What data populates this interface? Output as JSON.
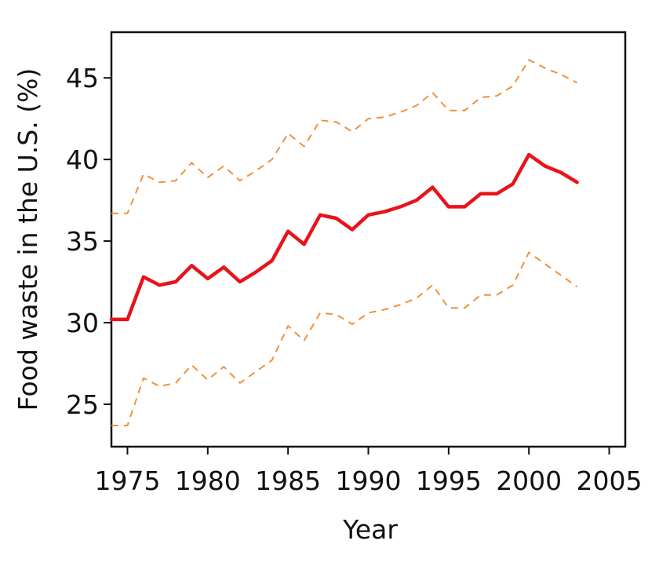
{
  "chart_data": {
    "type": "line",
    "title": "",
    "xlabel": "Year",
    "ylabel": "Food waste in the U.S. (%)",
    "xlim": [
      1974,
      2006
    ],
    "ylim": [
      22.4,
      47.8
    ],
    "x_ticks": [
      1975,
      1980,
      1985,
      1990,
      1995,
      2000,
      2005
    ],
    "y_ticks": [
      25,
      30,
      35,
      40,
      45
    ],
    "grid": false,
    "legend": "none",
    "series": [
      {
        "role": "estimate",
        "style": "solid",
        "color": "#e8141b",
        "x": [
          1974,
          1975,
          1976,
          1977,
          1978,
          1979,
          1980,
          1981,
          1982,
          1983,
          1984,
          1985,
          1986,
          1987,
          1988,
          1989,
          1990,
          1991,
          1992,
          1993,
          1994,
          1995,
          1996,
          1997,
          1998,
          1999,
          2000,
          2001,
          2002,
          2003
        ],
        "values": [
          30.2,
          30.2,
          32.8,
          32.3,
          32.5,
          33.5,
          32.7,
          33.4,
          32.5,
          33.1,
          33.8,
          35.6,
          34.8,
          36.6,
          36.4,
          35.7,
          36.6,
          36.8,
          37.1,
          37.5,
          38.3,
          37.1,
          37.1,
          37.9,
          37.9,
          38.5,
          40.3,
          39.6,
          39.2,
          38.6
        ]
      },
      {
        "role": "upper-bound",
        "style": "dashed",
        "color": "#f0913a",
        "x": [
          1974,
          1975,
          1976,
          1977,
          1978,
          1979,
          1980,
          1981,
          1982,
          1983,
          1984,
          1985,
          1986,
          1987,
          1988,
          1989,
          1990,
          1991,
          1992,
          1993,
          1994,
          1995,
          1996,
          1997,
          1998,
          1999,
          2000,
          2001,
          2002,
          2003
        ],
        "values": [
          36.7,
          36.7,
          39.1,
          38.6,
          38.7,
          39.8,
          38.9,
          39.6,
          38.7,
          39.3,
          40.0,
          41.6,
          40.8,
          42.4,
          42.3,
          41.7,
          42.5,
          42.6,
          42.9,
          43.3,
          44.1,
          43.0,
          43.0,
          43.8,
          43.9,
          44.5,
          46.1,
          45.6,
          45.2,
          44.7
        ]
      },
      {
        "role": "lower-bound",
        "style": "dashed",
        "color": "#f0913a",
        "x": [
          1974,
          1975,
          1976,
          1977,
          1978,
          1979,
          1980,
          1981,
          1982,
          1983,
          1984,
          1985,
          1986,
          1987,
          1988,
          1989,
          1990,
          1991,
          1992,
          1993,
          1994,
          1995,
          1996,
          1997,
          1998,
          1999,
          2000,
          2001,
          2002,
          2003
        ],
        "values": [
          23.7,
          23.7,
          26.6,
          26.1,
          26.3,
          27.4,
          26.5,
          27.3,
          26.3,
          27.0,
          27.7,
          29.8,
          28.9,
          30.6,
          30.5,
          29.9,
          30.6,
          30.8,
          31.1,
          31.5,
          32.3,
          30.9,
          30.9,
          31.7,
          31.7,
          32.3,
          34.3,
          33.6,
          32.9,
          32.2
        ]
      }
    ]
  }
}
